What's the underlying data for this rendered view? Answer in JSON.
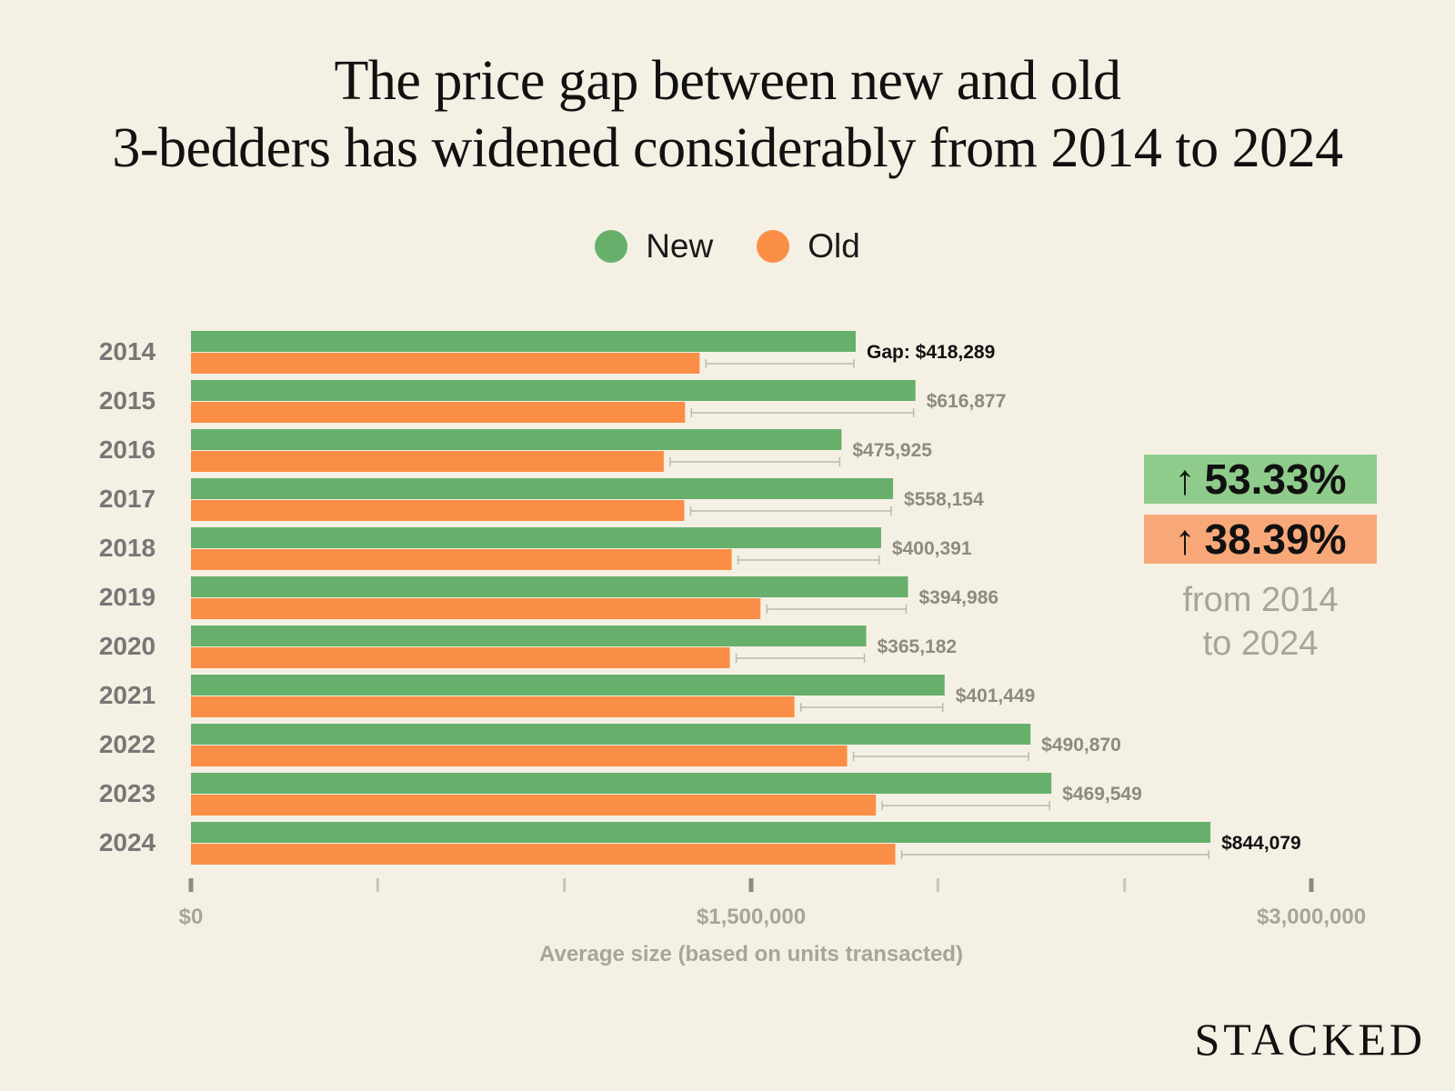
{
  "title_line1": "The price gap between new and old",
  "title_line2": "3-bedders has widened considerably from 2014 to 2024",
  "legend": [
    {
      "label": "New",
      "color": "#66b06b"
    },
    {
      "label": "Old",
      "color": "#fb8e46"
    }
  ],
  "badges": {
    "new_change": "53.33%",
    "old_change": "38.39%",
    "arrow": "↑",
    "new_bg": "#8fcb8a",
    "old_bg": "#f8a878",
    "note_line1": "from 2014",
    "note_line2": "to 2024"
  },
  "brand": "STACKED",
  "chart_data": {
    "type": "bar",
    "orientation": "horizontal",
    "categories": [
      "2014",
      "2015",
      "2016",
      "2017",
      "2018",
      "2019",
      "2020",
      "2021",
      "2022",
      "2023",
      "2024"
    ],
    "series": [
      {
        "name": "New",
        "color": "#66b06b",
        "values": [
          1780000,
          1940000,
          1742000,
          1880000,
          1848000,
          1920000,
          1808000,
          2018000,
          2248000,
          2304000,
          2730000
        ]
      },
      {
        "name": "Old",
        "color": "#fb8e46",
        "values": [
          1362000,
          1323000,
          1266000,
          1321000,
          1448000,
          1525000,
          1443000,
          1616000,
          1757000,
          1834000,
          1886000
        ]
      }
    ],
    "gap_labels": [
      "Gap: $418,289",
      "$616,877",
      "$475,925",
      "$558,154",
      "$400,391",
      "$394,986",
      "$365,182",
      "$401,449",
      "$490,870",
      "$469,549",
      "$844,079"
    ],
    "gap_label_highlight": [
      true,
      false,
      false,
      false,
      false,
      false,
      false,
      false,
      false,
      false,
      true
    ],
    "xlim": [
      0,
      3000000
    ],
    "xticks": [
      0,
      500000,
      1000000,
      1500000,
      2000000,
      2500000,
      3000000
    ],
    "xtick_labels": [
      "$0",
      "",
      "",
      "$1,500,000",
      "",
      "",
      "$3,000,000"
    ],
    "xlabel": "Average size (based on units transacted)",
    "ylabel": "",
    "grid": false,
    "legend_position": "top-center"
  }
}
